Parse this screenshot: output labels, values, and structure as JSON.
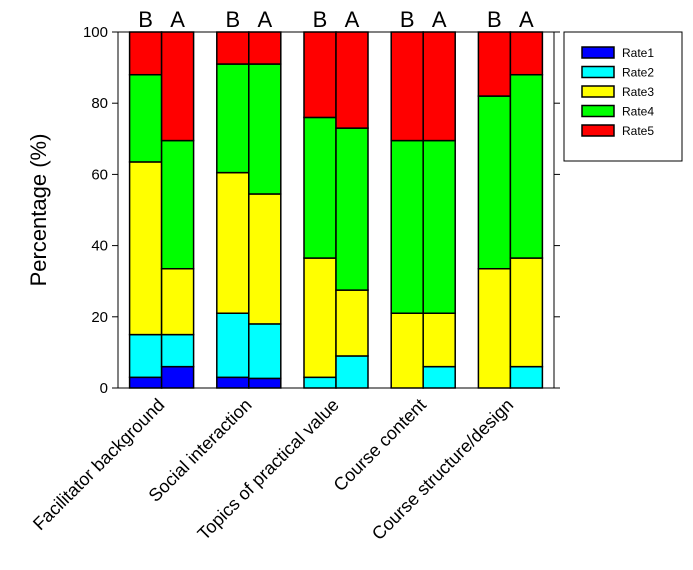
{
  "chart_data": {
    "type": "bar",
    "stacked": true,
    "ylabel": "Percentage (%)",
    "ylim": [
      0,
      100
    ],
    "yticks": [
      "0",
      "20",
      "40",
      "60",
      "80",
      "100"
    ],
    "grid": false,
    "legend_position": "right",
    "categories": [
      "Facilitator background",
      "Social interaction",
      "Topics of practical value",
      "Course content",
      "Course structure/design"
    ],
    "groups": [
      "B",
      "A"
    ],
    "series": [
      {
        "name": "Rate1",
        "color": "#0000ff",
        "B": [
          3,
          3,
          0,
          0,
          0
        ],
        "A": [
          6,
          2.7,
          0,
          0,
          0
        ]
      },
      {
        "name": "Rate2",
        "color": "#00ffff",
        "B": [
          12,
          18,
          3,
          0,
          0
        ],
        "A": [
          9,
          15.3,
          9,
          6,
          6
        ]
      },
      {
        "name": "Rate3",
        "color": "#ffff00",
        "B": [
          48.5,
          39.5,
          33.5,
          21,
          33.5
        ],
        "A": [
          18.5,
          36.5,
          18.5,
          15,
          30.5
        ]
      },
      {
        "name": "Rate4",
        "color": "#00ff00",
        "B": [
          24.5,
          30.5,
          39.5,
          48.5,
          48.5
        ],
        "A": [
          36,
          36.5,
          45.5,
          48.5,
          51.5
        ]
      },
      {
        "name": "Rate5",
        "color": "#ff0000",
        "B": [
          12,
          9,
          24,
          30.5,
          18
        ],
        "A": [
          30.5,
          9,
          27,
          30.5,
          12
        ]
      }
    ]
  }
}
